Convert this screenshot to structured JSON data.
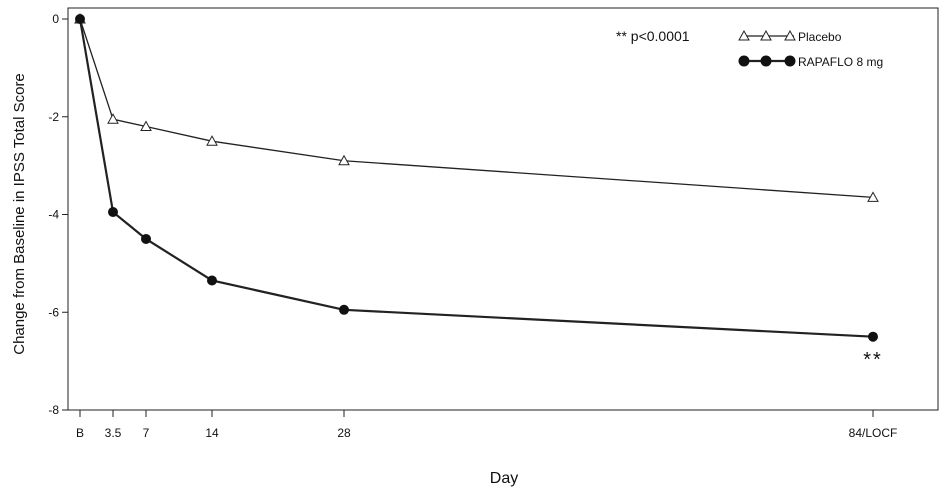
{
  "chart_data": {
    "type": "line",
    "title": "",
    "xlabel": "Day",
    "ylabel": "Change from Baseline in IPSS Total Score",
    "categories": [
      "B",
      "3.5",
      "7",
      "14",
      "28",
      "84/LOCF"
    ],
    "x": [
      0,
      3.5,
      7,
      14,
      28,
      84
    ],
    "ylim": [
      -8,
      0
    ],
    "yticks": [
      0,
      -2,
      -4,
      -6,
      -8
    ],
    "grid": false,
    "legend_position": "top-right",
    "series": [
      {
        "name": "Placebo",
        "marker": "triangle-open",
        "values": [
          0,
          -2.05,
          -2.2,
          -2.5,
          -2.9,
          -3.65
        ]
      },
      {
        "name": "RAPAFLO 8 mg",
        "marker": "circle-filled",
        "values": [
          0,
          -3.95,
          -4.5,
          -5.35,
          -5.95,
          -6.5
        ]
      }
    ],
    "annotations": {
      "p_value_note": "** p<0.0001",
      "significance_marker": "**"
    }
  }
}
